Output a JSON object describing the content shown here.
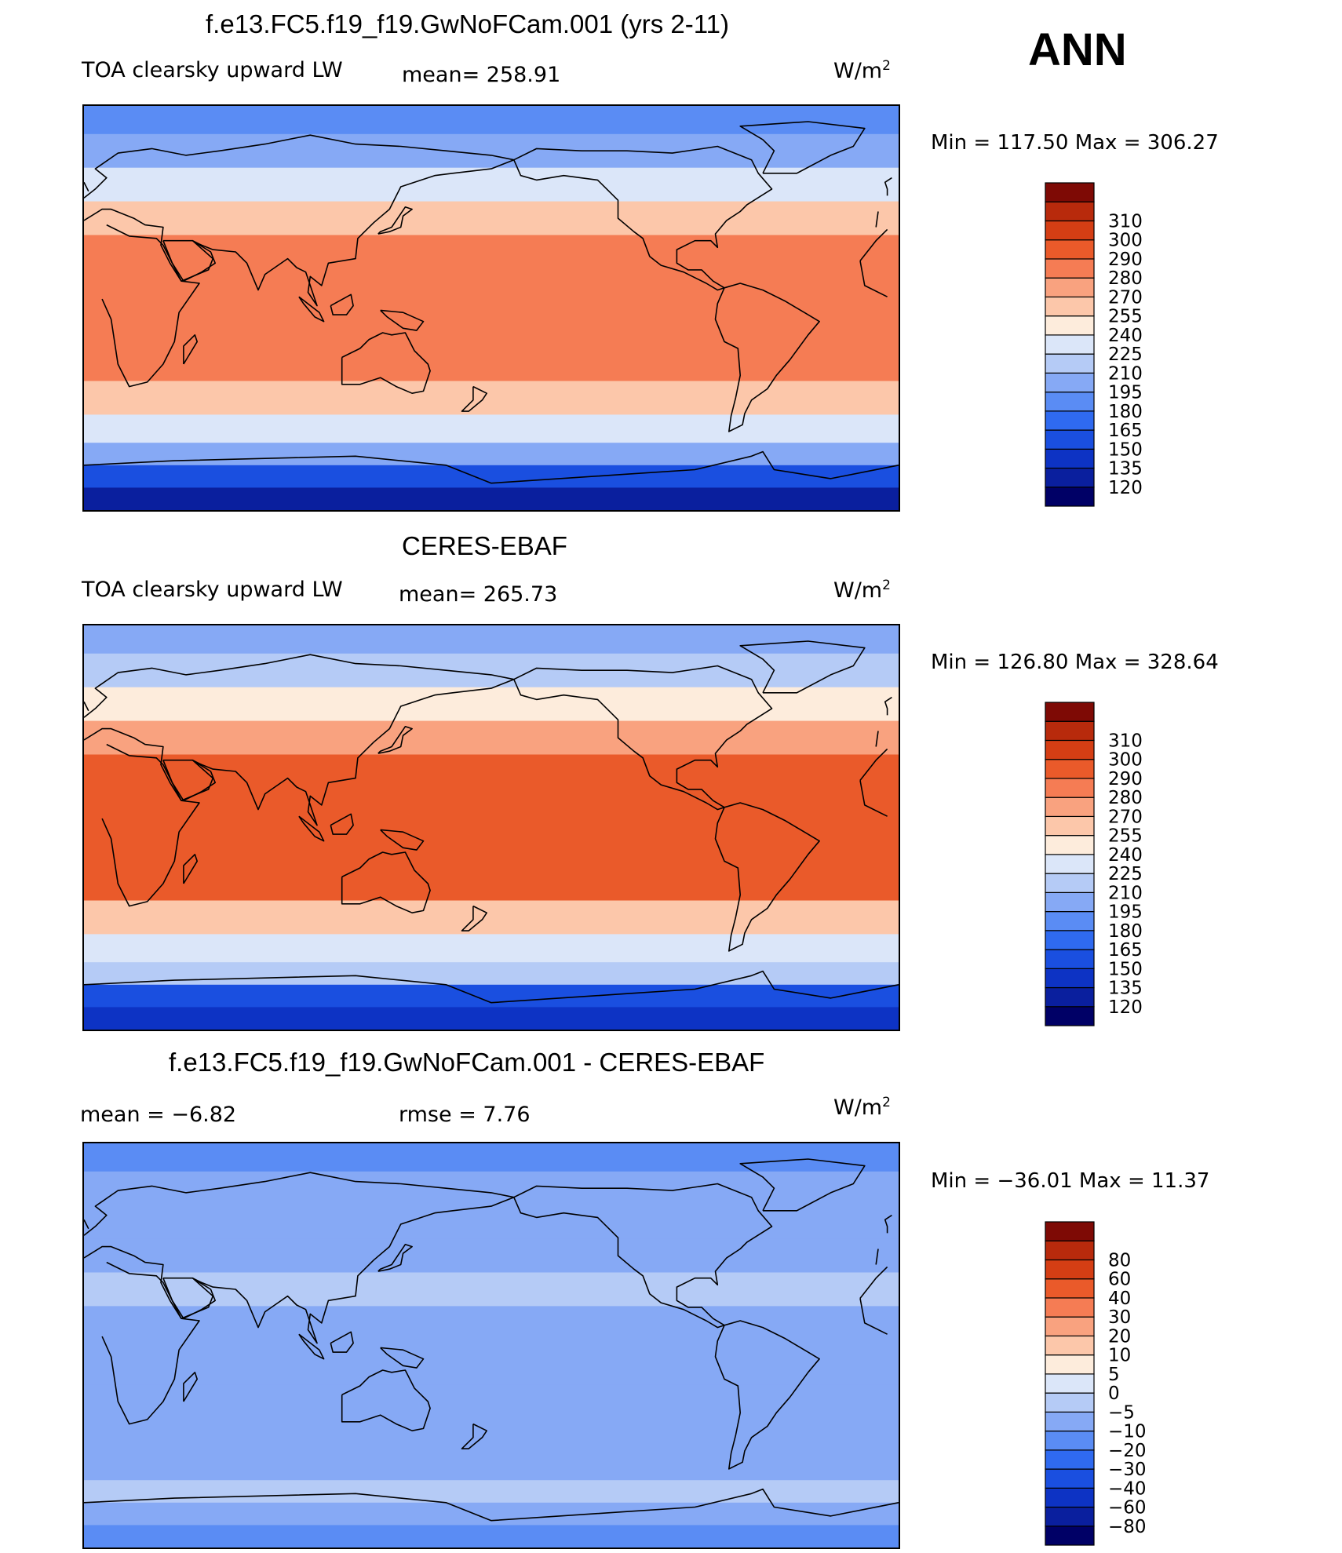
{
  "season": "ANN",
  "unit_label": "W/m",
  "unit_sup": "2",
  "panel1": {
    "title": "f.e13.FC5.f19_f19.GwNoFCam.001 (yrs 2-11)",
    "var": "TOA clearsky upward LW",
    "mean_text": "mean=  258.91",
    "minmax": "Min  =  117.50  Max  =  306.27"
  },
  "panel2": {
    "title": "CERES-EBAF",
    "var": "TOA clearsky upward LW",
    "mean_text": "mean=  265.73",
    "minmax": "Min  =  126.80  Max  =  328.64"
  },
  "panel3": {
    "title": "f.e13.FC5.f19_f19.GwNoFCam.001 - CERES-EBAF",
    "mean_text": "mean  =    −6.82",
    "rmse_text": "rmse  =     7.76",
    "minmax": "Min  =  −36.01  Max  =    11.37"
  },
  "chart_data": [
    {
      "type": "heatmap",
      "title": "f.e13.FC5.f19_f19.GwNoFCam.001 (yrs 2-11)",
      "variable": "TOA clearsky upward LW",
      "units": "W/m2",
      "mean": 258.91,
      "min": 117.5,
      "max": 306.27,
      "levels": [
        "120",
        "135",
        "150",
        "165",
        "180",
        "195",
        "210",
        "225",
        "240",
        "255",
        "270",
        "280",
        "290",
        "300",
        "310"
      ],
      "level_colors": [
        "#000066",
        "#0a1f9e",
        "#0d33c4",
        "#1a4fe0",
        "#2f6af0",
        "#5a8cf4",
        "#86a9f5",
        "#b5cbf6",
        "#dbe6f9",
        "#fdecdc",
        "#fcc7aa",
        "#f9a27f",
        "#f57c54",
        "#ea5a2a",
        "#d53e14",
        "#b82a0c",
        "#7e0a05"
      ],
      "zonal_band_values": [
        {
          "lat": 85,
          "value": 180
        },
        {
          "lat": 70,
          "value": 200
        },
        {
          "lat": 55,
          "value": 232
        },
        {
          "lat": 40,
          "value": 262
        },
        {
          "lat": 25,
          "value": 285
        },
        {
          "lat": 10,
          "value": 288
        },
        {
          "lat": -10,
          "value": 289
        },
        {
          "lat": -25,
          "value": 285
        },
        {
          "lat": -40,
          "value": 262
        },
        {
          "lat": -55,
          "value": 228
        },
        {
          "lat": -65,
          "value": 200
        },
        {
          "lat": -75,
          "value": 150
        },
        {
          "lat": -85,
          "value": 125
        }
      ]
    },
    {
      "type": "heatmap",
      "title": "CERES-EBAF",
      "variable": "TOA clearsky upward LW",
      "units": "W/m2",
      "mean": 265.73,
      "min": 126.8,
      "max": 328.64,
      "levels": [
        "120",
        "135",
        "150",
        "165",
        "180",
        "195",
        "210",
        "225",
        "240",
        "255",
        "270",
        "280",
        "290",
        "300",
        "310"
      ],
      "level_colors": [
        "#000066",
        "#0a1f9e",
        "#0d33c4",
        "#1a4fe0",
        "#2f6af0",
        "#5a8cf4",
        "#86a9f5",
        "#b5cbf6",
        "#dbe6f9",
        "#fdecdc",
        "#fcc7aa",
        "#f9a27f",
        "#f57c54",
        "#ea5a2a",
        "#d53e14",
        "#b82a0c",
        "#7e0a05"
      ],
      "zonal_band_values": [
        {
          "lat": 85,
          "value": 195
        },
        {
          "lat": 70,
          "value": 215
        },
        {
          "lat": 55,
          "value": 240
        },
        {
          "lat": 40,
          "value": 270
        },
        {
          "lat": 25,
          "value": 290
        },
        {
          "lat": 10,
          "value": 294
        },
        {
          "lat": -10,
          "value": 295
        },
        {
          "lat": -25,
          "value": 290
        },
        {
          "lat": -40,
          "value": 268
        },
        {
          "lat": -55,
          "value": 238
        },
        {
          "lat": -65,
          "value": 210
        },
        {
          "lat": -75,
          "value": 160
        },
        {
          "lat": -85,
          "value": 135
        }
      ]
    },
    {
      "type": "heatmap",
      "title": "f.e13.FC5.f19_f19.GwNoFCam.001 - CERES-EBAF",
      "units": "W/m2",
      "mean": -6.82,
      "rmse": 7.76,
      "min": -36.01,
      "max": 11.37,
      "levels": [
        "−80",
        "−60",
        "−40",
        "−30",
        "−20",
        "−10",
        "−5",
        "0",
        "5",
        "10",
        "20",
        "30",
        "40",
        "60",
        "80"
      ],
      "level_colors": [
        "#000066",
        "#0a1f9e",
        "#0d33c4",
        "#1a4fe0",
        "#2f6af0",
        "#5a8cf4",
        "#86a9f5",
        "#b5cbf6",
        "#dbe6f9",
        "#fdecdc",
        "#fcc7aa",
        "#f9a27f",
        "#f57c54",
        "#ea5a2a",
        "#d53e14",
        "#b82a0c",
        "#7e0a05"
      ],
      "zonal_band_values": [
        {
          "lat": 85,
          "value": -12
        },
        {
          "lat": 70,
          "value": -8
        },
        {
          "lat": 55,
          "value": -7
        },
        {
          "lat": 40,
          "value": -6
        },
        {
          "lat": 25,
          "value": -5
        },
        {
          "lat": 10,
          "value": -6
        },
        {
          "lat": -10,
          "value": -7
        },
        {
          "lat": -25,
          "value": -6
        },
        {
          "lat": -40,
          "value": -7
        },
        {
          "lat": -55,
          "value": -9
        },
        {
          "lat": -65,
          "value": -4
        },
        {
          "lat": -75,
          "value": -10
        },
        {
          "lat": -85,
          "value": -12
        }
      ]
    }
  ]
}
